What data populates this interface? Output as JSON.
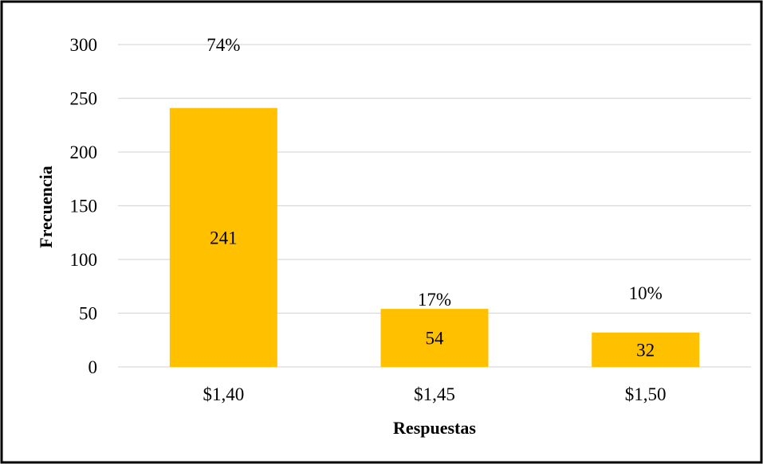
{
  "chart_data": {
    "type": "bar",
    "categories": [
      "$1,40",
      "$1,45",
      "$1,50"
    ],
    "values": [
      241,
      54,
      32
    ],
    "data_labels": [
      "241",
      "54",
      "32"
    ],
    "percent_labels": [
      "74%",
      "17%",
      "10%"
    ],
    "xlabel": "Respuestas",
    "ylabel": "Frecuencia",
    "ylim": [
      0,
      300
    ],
    "yticks": [
      0,
      50,
      100,
      150,
      200,
      250,
      300
    ],
    "grid": true,
    "legend": "none",
    "colors": {
      "bar": "#FFC000",
      "grid": "#D9D9D9",
      "frame": "#000000"
    }
  }
}
